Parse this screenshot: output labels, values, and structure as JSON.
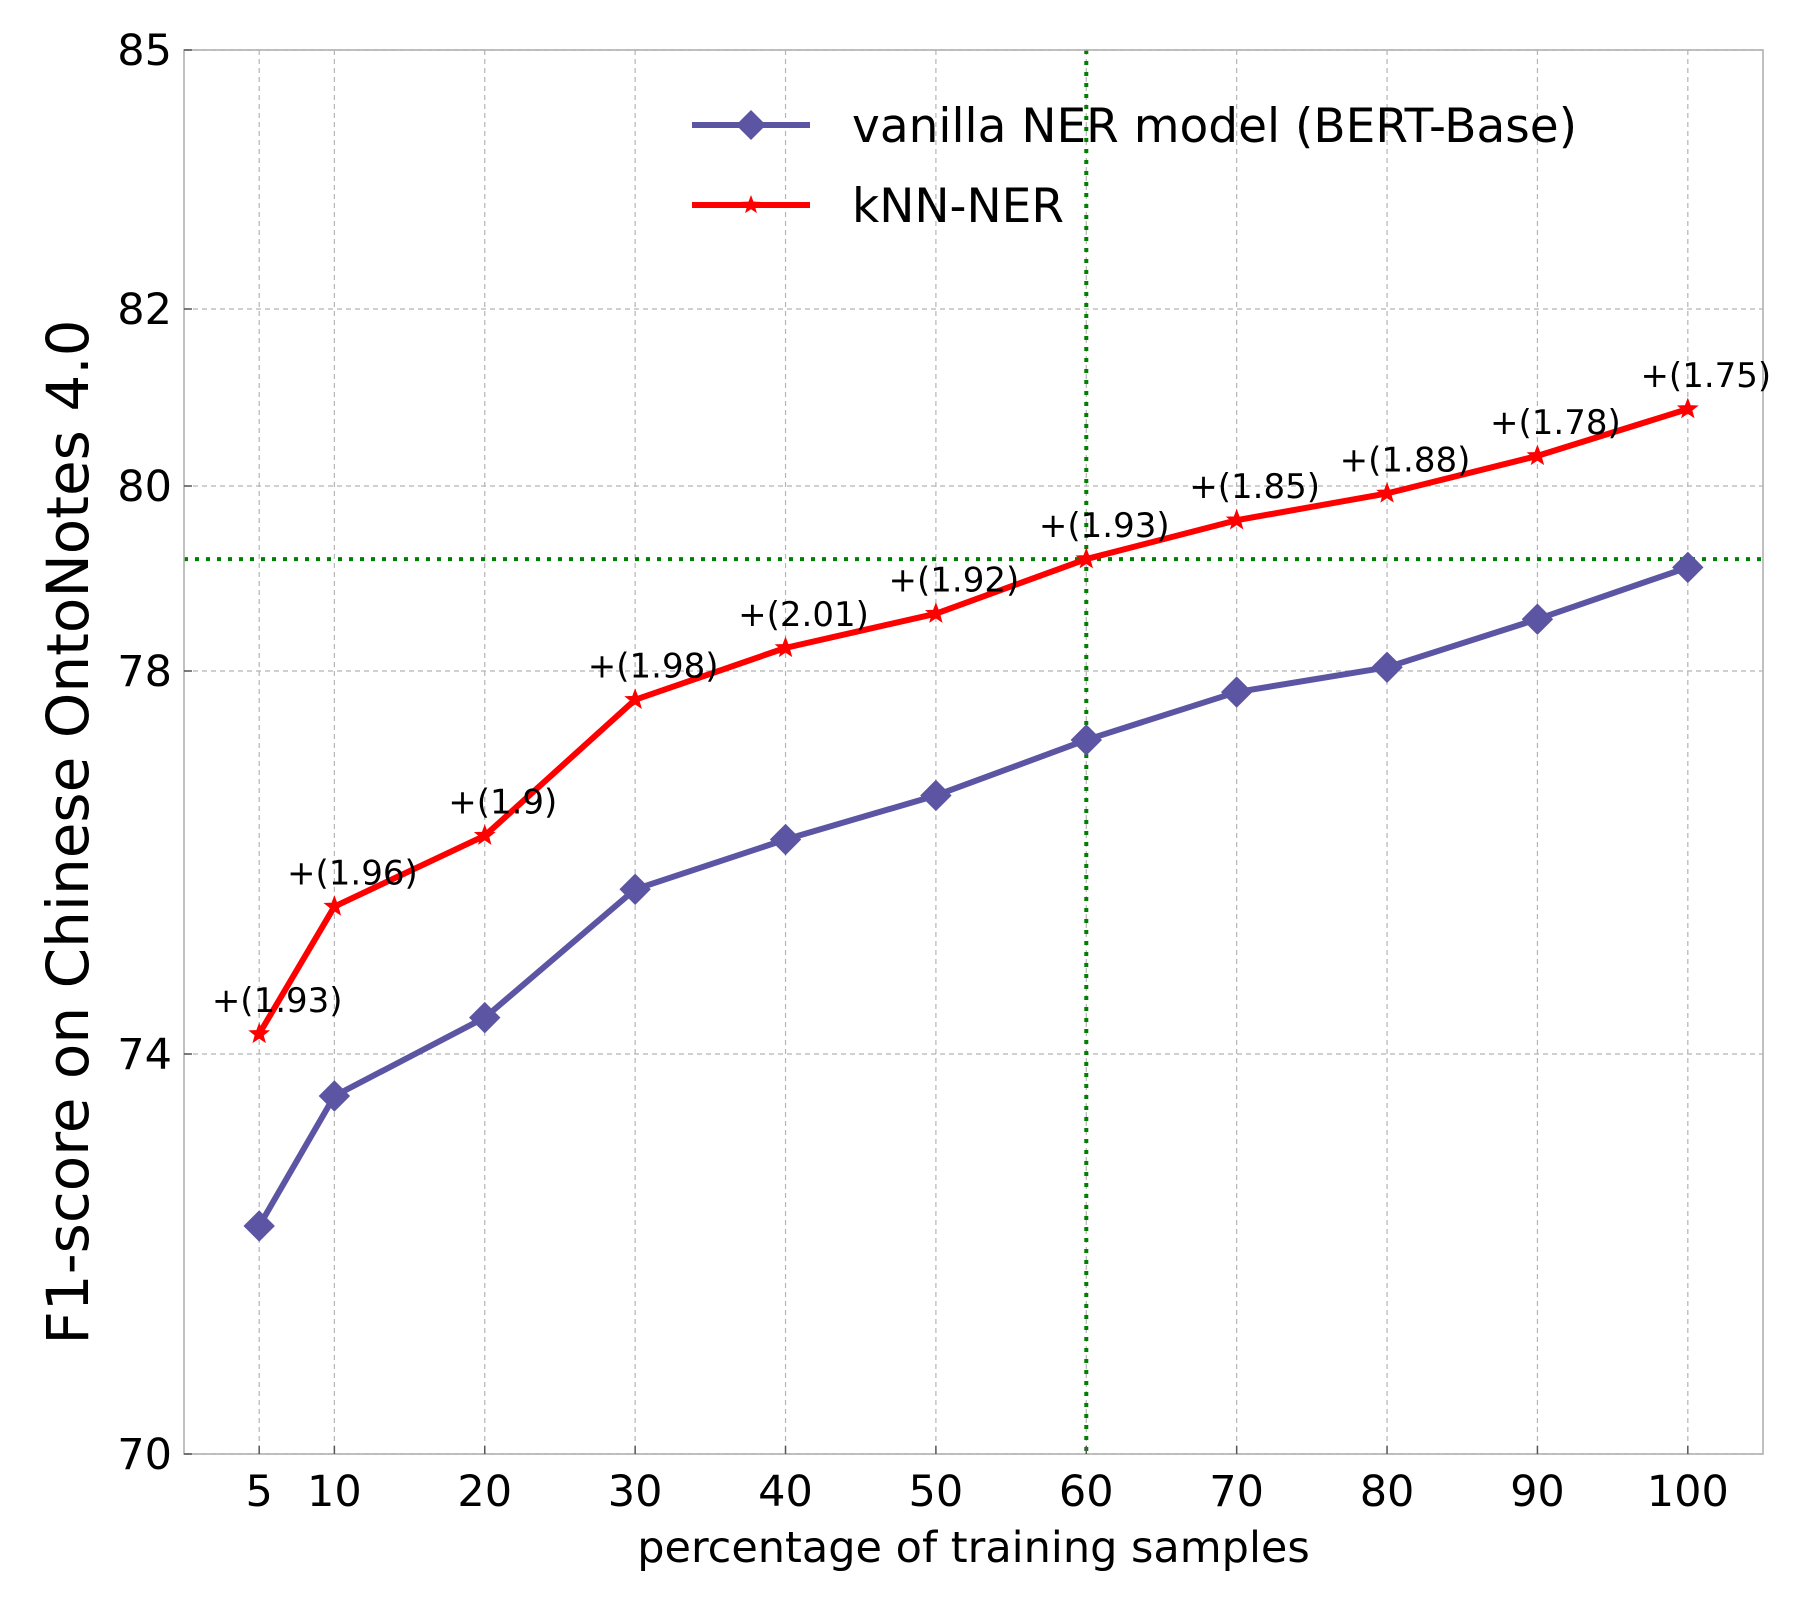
{
  "chart_data": {
    "type": "line",
    "title": "",
    "xlabel": "percentage of training samples",
    "ylabel": "F1-score on Chinese OntoNotes 4.0",
    "x": [
      5,
      10,
      20,
      30,
      40,
      50,
      60,
      70,
      80,
      90,
      100
    ],
    "xlim": [
      0,
      105
    ],
    "x_ticks": [
      5,
      10,
      20,
      30,
      40,
      50,
      60,
      70,
      80,
      90,
      100
    ],
    "x_tick_labels": [
      "5",
      "10",
      "20",
      "30",
      "40",
      "50",
      "60",
      "70",
      "80",
      "90",
      "100"
    ],
    "y_ticks": [
      70,
      74,
      78,
      80,
      82,
      85
    ],
    "y_tick_labels": [
      "70",
      "74",
      "78",
      "80",
      "82",
      "85"
    ],
    "y_scale": "piecewise",
    "grid": true,
    "legend_position": "top-right",
    "series": [
      {
        "name": "vanilla NER model (BERT-Base)",
        "color": "#5c55a3",
        "marker": "diamond",
        "values": [
          72.28,
          73.58,
          74.38,
          75.72,
          76.24,
          76.7,
          77.28,
          77.78,
          78.04,
          78.56,
          79.12
        ]
      },
      {
        "name": "kNN-NER",
        "color": "#ff0000",
        "marker": "star",
        "values": [
          74.21,
          75.54,
          76.28,
          77.7,
          78.25,
          78.62,
          79.21,
          79.63,
          79.92,
          80.34,
          80.87
        ]
      }
    ],
    "annotations": [
      "+(1.93)",
      "+(1.96)",
      "+(1.9)",
      "+(1.98)",
      "+(2.01)",
      "+(1.92)",
      "+(1.93)",
      "+(1.85)",
      "+(1.88)",
      "+(1.78)",
      "+(1.75)"
    ],
    "reference_lines": {
      "color": "#008000",
      "vertical_x": 60,
      "horizontal_y": 79.21
    }
  }
}
